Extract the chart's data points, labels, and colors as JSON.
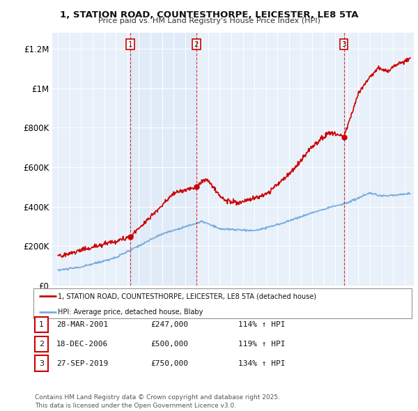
{
  "title": "1, STATION ROAD, COUNTESTHORPE, LEICESTER, LE8 5TA",
  "subtitle": "Price paid vs. HM Land Registry's House Price Index (HPI)",
  "ylabel_ticks": [
    "£0",
    "£200K",
    "£400K",
    "£600K",
    "£800K",
    "£1M",
    "£1.2M"
  ],
  "ytick_values": [
    0,
    200000,
    400000,
    600000,
    800000,
    1000000,
    1200000
  ],
  "ylim": [
    0,
    1280000
  ],
  "xlim_start": 1994.5,
  "xlim_end": 2025.8,
  "legend_line1": "1, STATION ROAD, COUNTESTHORPE, LEICESTER, LE8 5TA (detached house)",
  "legend_line2": "HPI: Average price, detached house, Blaby",
  "sale_color": "#cc0000",
  "hpi_color": "#7aacdc",
  "vline_color": "#cc0000",
  "highlight_color": "#dce8f5",
  "table_rows": [
    {
      "num": "1",
      "date": "28-MAR-2001",
      "price": "£247,000",
      "hpi": "114% ↑ HPI"
    },
    {
      "num": "2",
      "date": "18-DEC-2006",
      "price": "£500,000",
      "hpi": "119% ↑ HPI"
    },
    {
      "num": "3",
      "date": "27-SEP-2019",
      "price": "£750,000",
      "hpi": "134% ↑ HPI"
    }
  ],
  "sale_points": [
    {
      "year": 2001.24,
      "price": 247000,
      "label": "1"
    },
    {
      "year": 2006.97,
      "price": 500000,
      "label": "2"
    },
    {
      "year": 2019.74,
      "price": 750000,
      "label": "3"
    }
  ],
  "footnote": "Contains HM Land Registry data © Crown copyright and database right 2025.\nThis data is licensed under the Open Government Licence v3.0.",
  "background_color": "#e8f0fa"
}
